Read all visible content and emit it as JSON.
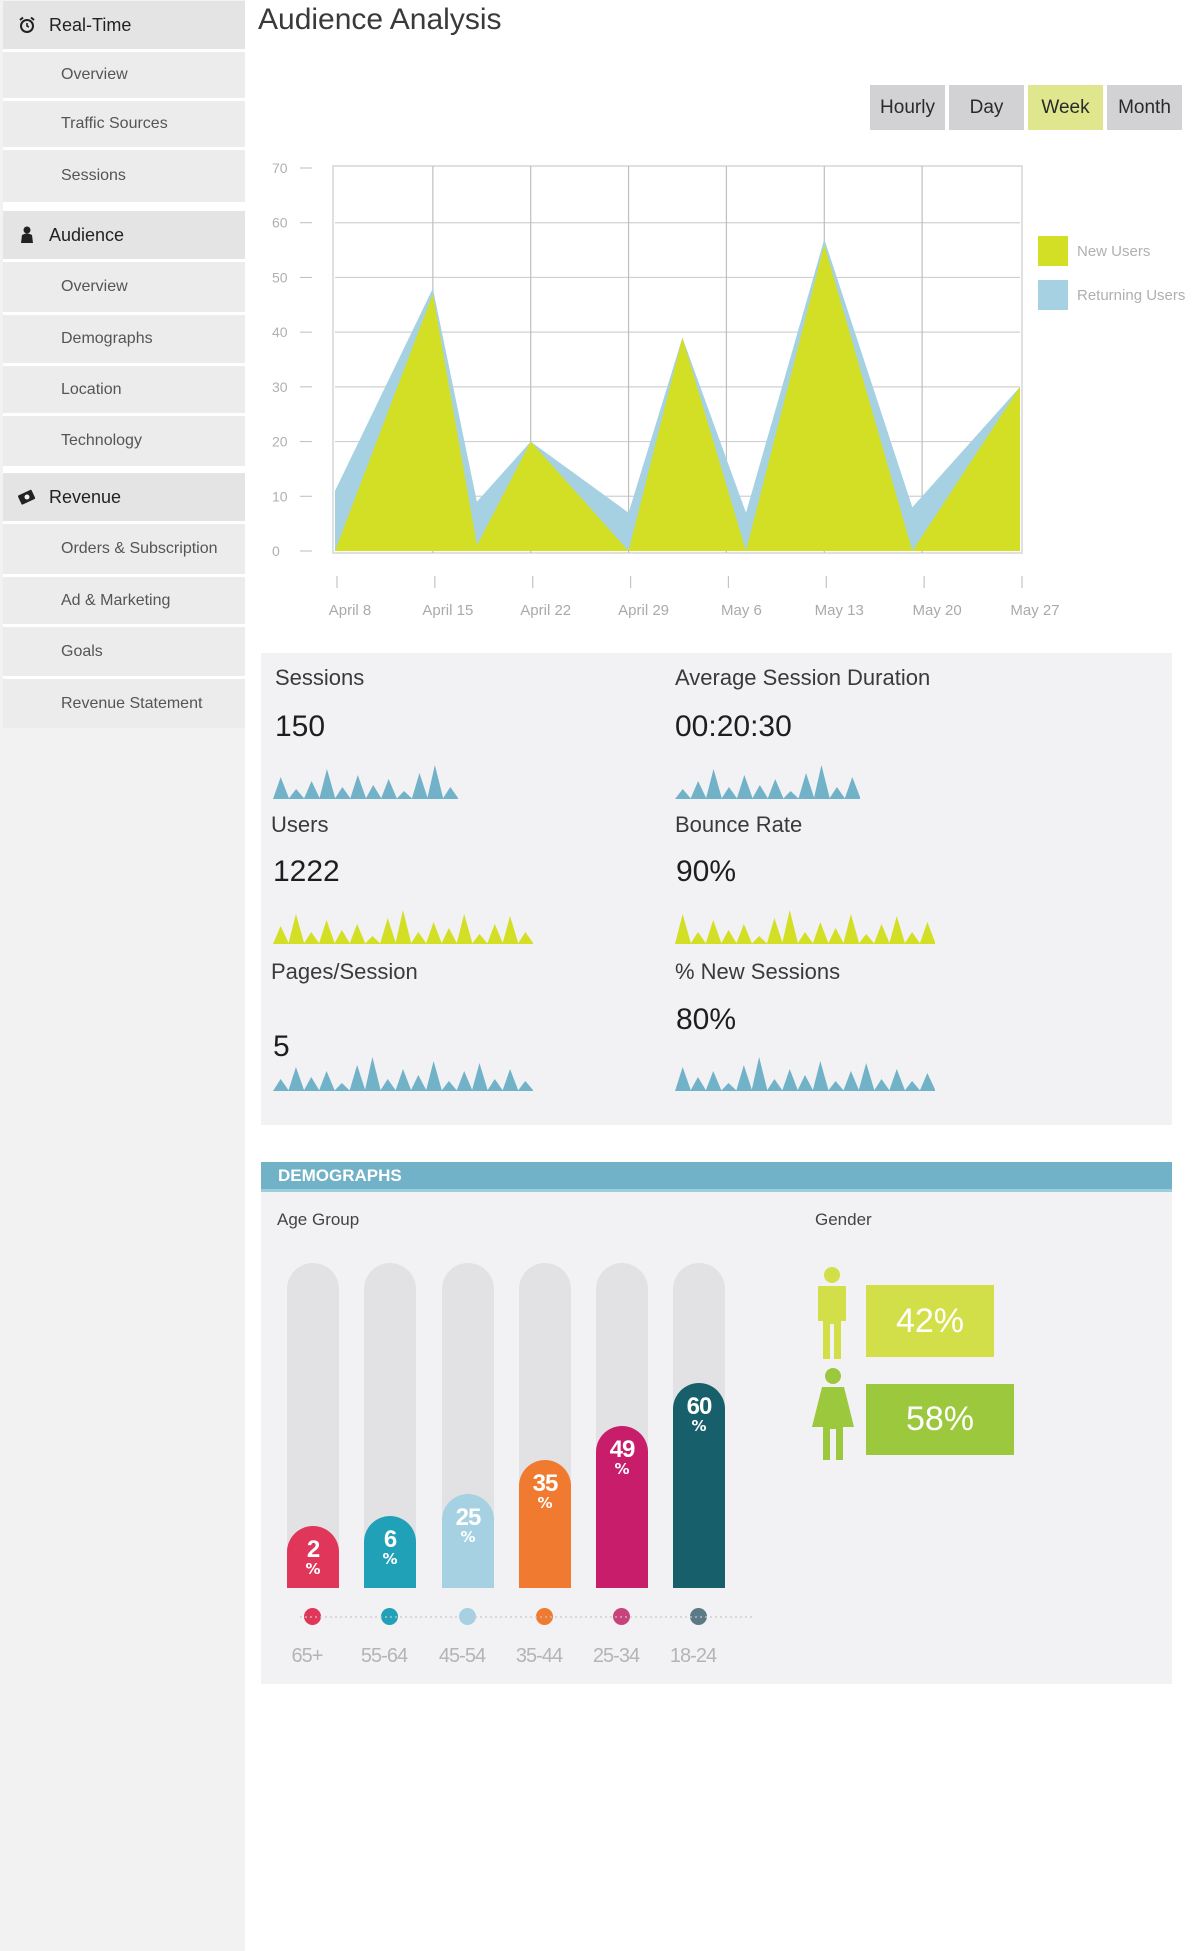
{
  "sidebar": {
    "sections": [
      {
        "label": "Real-Time",
        "icon": "alarm-clock-icon",
        "items": [
          "Overview",
          "Traffic Sources",
          "Sessions"
        ]
      },
      {
        "label": "Audience",
        "icon": "person-icon",
        "items": [
          "Overview",
          "Demographs",
          "Location",
          "Technology"
        ]
      },
      {
        "label": "Revenue",
        "icon": "money-icon",
        "items": [
          "Orders & Subscription",
          "Ad & Marketing",
          "Goals",
          "Revenue Statement"
        ]
      }
    ]
  },
  "header": {
    "title": "Audience Analysis"
  },
  "range_tabs": {
    "options": [
      "Hourly",
      "Day",
      "Week",
      "Month"
    ],
    "selected": "Week"
  },
  "chart_data": {
    "type": "area",
    "x": [
      "April 8",
      "April 15",
      "April 22",
      "April 29",
      "May 6",
      "May 13",
      "May 20",
      "May 27"
    ],
    "ylim": [
      0,
      70
    ],
    "yticks": [
      0,
      10,
      20,
      30,
      40,
      50,
      60,
      70
    ],
    "grid": true,
    "legend_position": "right",
    "series": [
      {
        "name": "Returning Users",
        "color": "#a6d1e2",
        "points": [
          [
            0,
            11
          ],
          [
            1,
            48
          ],
          [
            1.45,
            9
          ],
          [
            2,
            20
          ],
          [
            3,
            7
          ],
          [
            3.55,
            39
          ],
          [
            4.2,
            7
          ],
          [
            5,
            57
          ],
          [
            5.9,
            8
          ],
          [
            7,
            30
          ]
        ]
      },
      {
        "name": "New Users",
        "color": "#d2df24",
        "points": [
          [
            0,
            0
          ],
          [
            1,
            47
          ],
          [
            1.45,
            1
          ],
          [
            2,
            20
          ],
          [
            3,
            0
          ],
          [
            3.55,
            39
          ],
          [
            4.2,
            0
          ],
          [
            5,
            56
          ],
          [
            5.9,
            0
          ],
          [
            7,
            30
          ]
        ]
      }
    ]
  },
  "stats": [
    {
      "label": "Sessions",
      "value": "150",
      "color": "#71b2c8"
    },
    {
      "label": "Average Session Duration",
      "value": "00:20:30",
      "color": "#71b2c8"
    },
    {
      "label": "Users",
      "value": "1222",
      "color": "#d2df24"
    },
    {
      "label": "Bounce Rate",
      "value": "90%",
      "color": "#d2df24"
    },
    {
      "label": "Pages/Session",
      "value": "5",
      "color": "#71b2c8"
    },
    {
      "label": "% New Sessions",
      "value": "80%",
      "color": "#71b2c8"
    }
  ],
  "demographs": {
    "title": "DEMOGRAPHS",
    "age_title": "Age Group",
    "gender_title": "Gender",
    "pct_sign": "%",
    "age_groups": [
      {
        "label": "65+",
        "value": 2,
        "color": "#e0365a"
      },
      {
        "label": "55-64",
        "value": 6,
        "color": "#21a1b7"
      },
      {
        "label": "45-54",
        "value": 25,
        "color": "#a6d1e2"
      },
      {
        "label": "35-44",
        "value": 35,
        "color": "#f07a30"
      },
      {
        "label": "25-34",
        "value": 49,
        "color": "#c81d6b"
      },
      {
        "label": "18-24",
        "value": 60,
        "color": "#165f6b"
      }
    ],
    "dot_colors": [
      "#e0365a",
      "#21a1b7",
      "#a6d1e2",
      "#f07a30",
      "#c8437a",
      "#5b7a86"
    ],
    "gender": [
      {
        "name": "male",
        "value": "42%",
        "color": "#d2df48"
      },
      {
        "name": "female",
        "value": "58%",
        "color": "#9cc83e"
      }
    ]
  }
}
